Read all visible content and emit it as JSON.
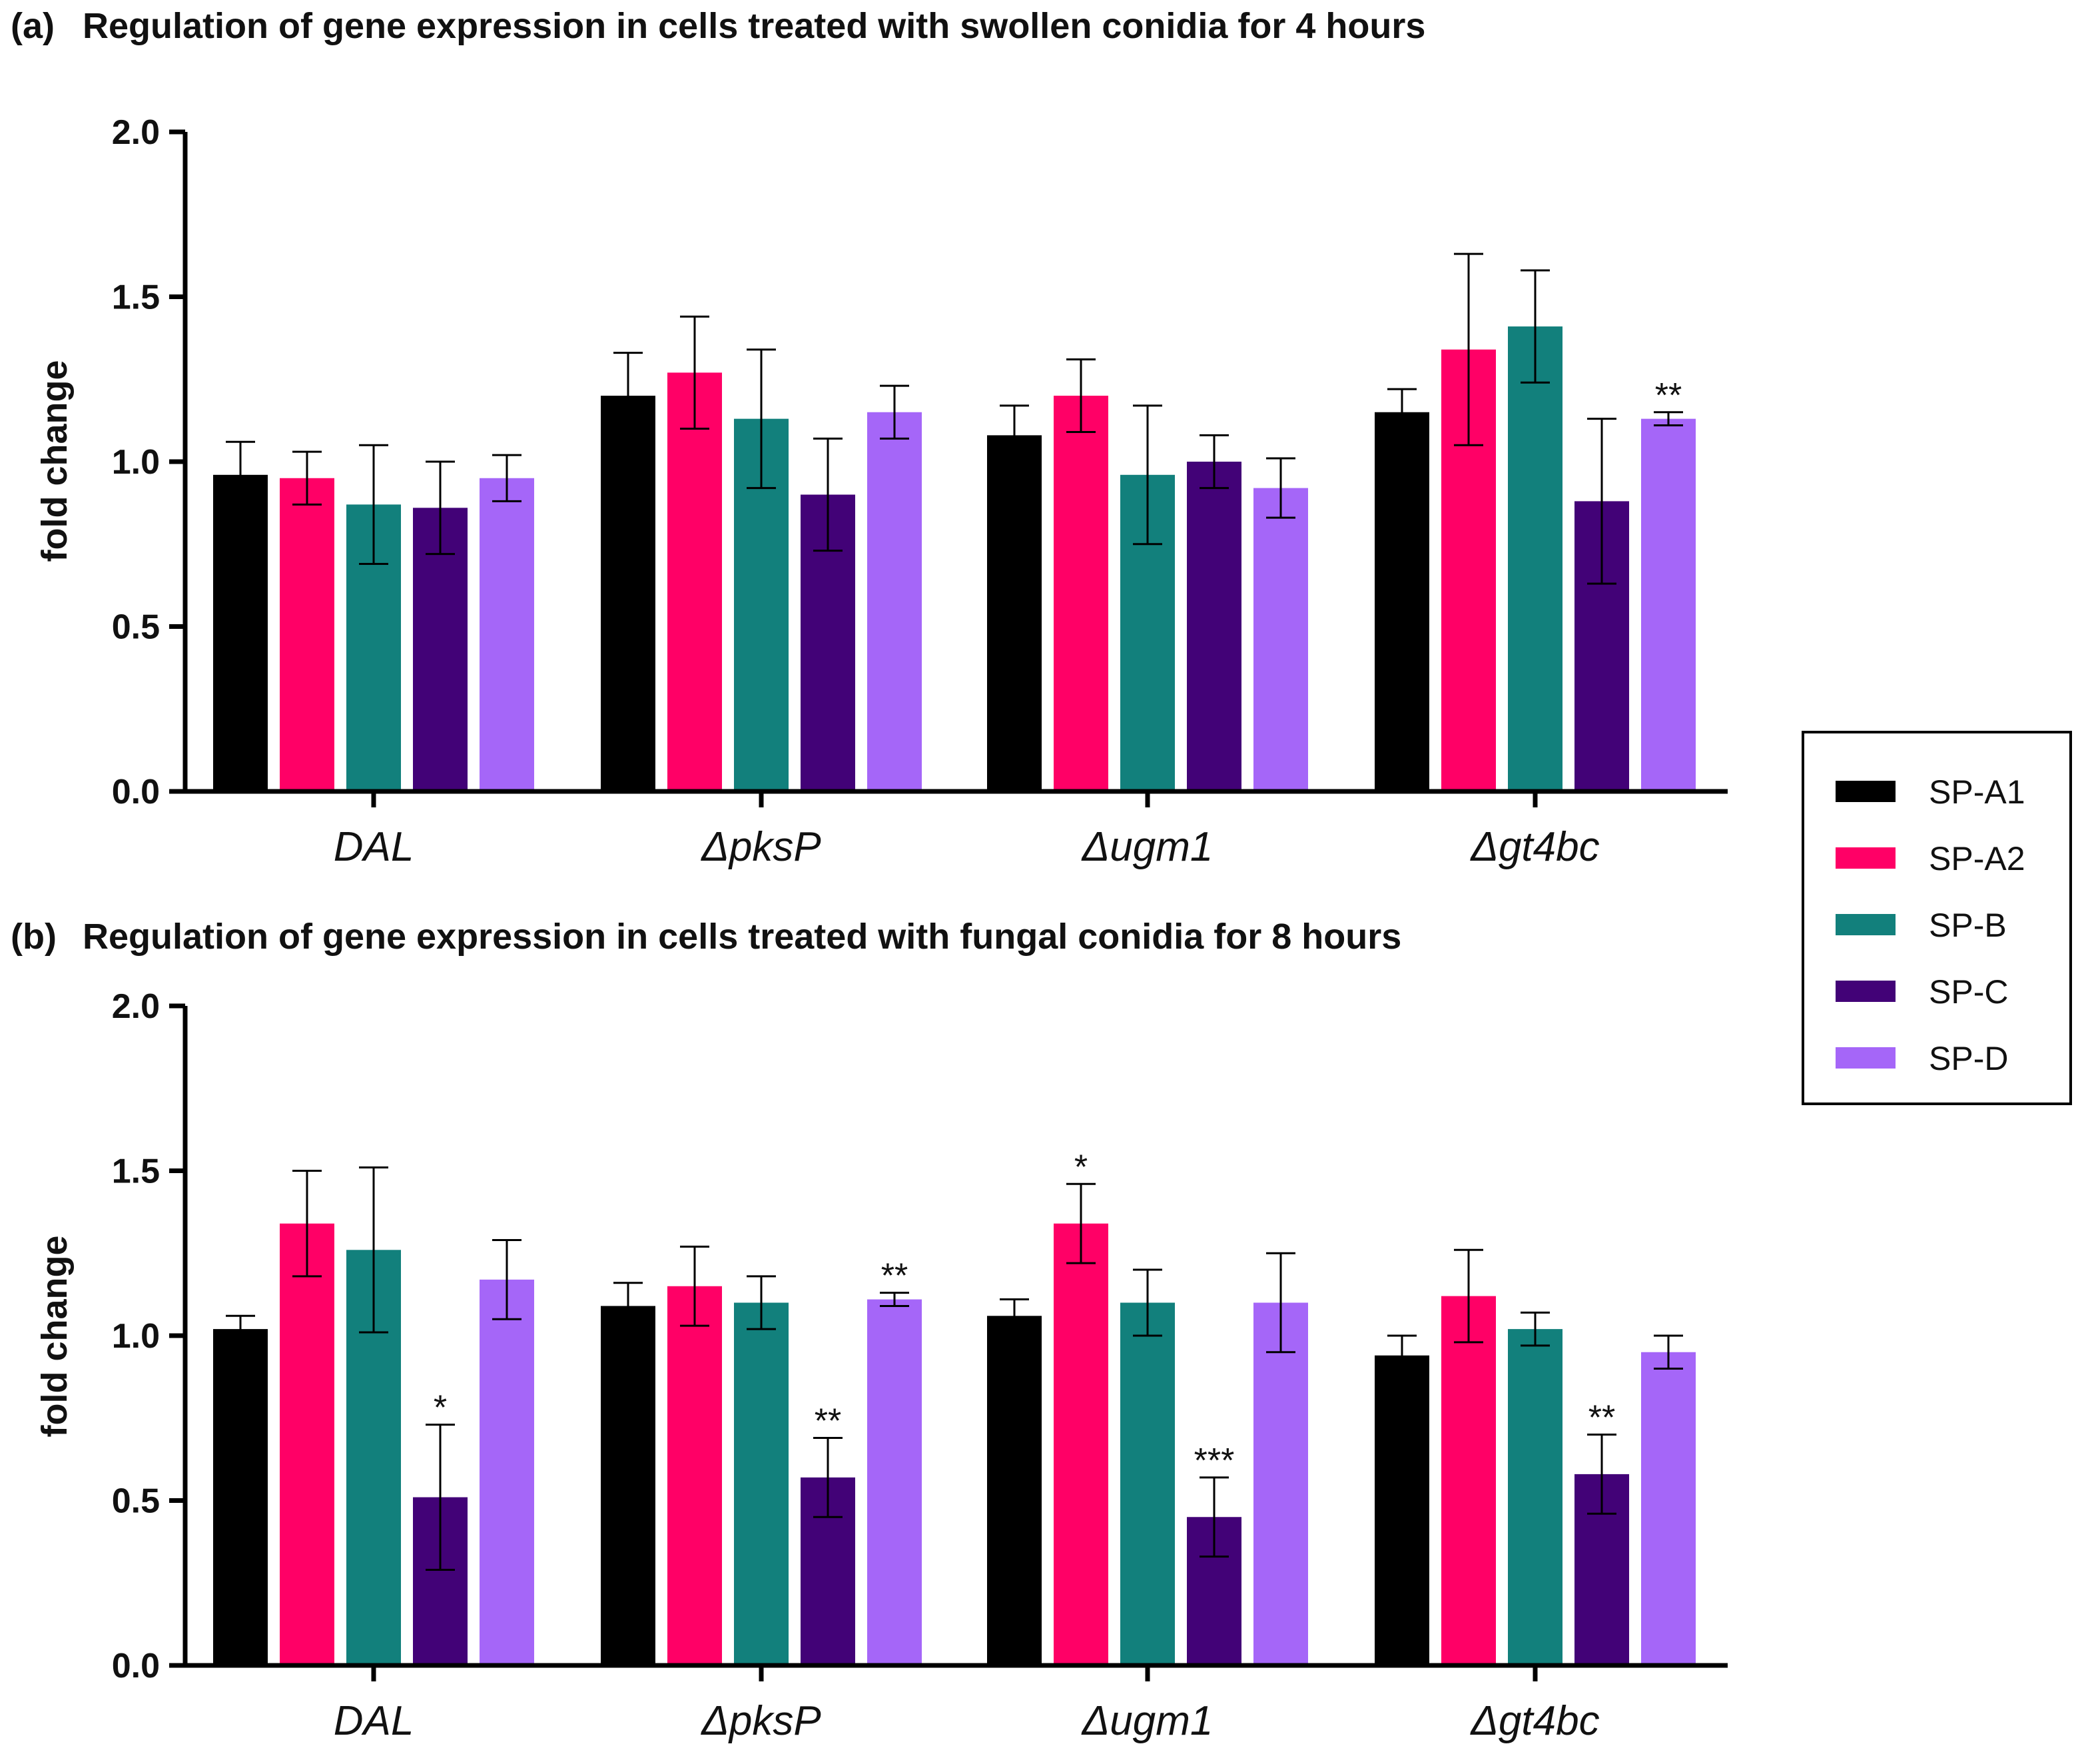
{
  "legend": {
    "entries": [
      {
        "name": "SP-A1",
        "color": "#000000"
      },
      {
        "name": "SP-A2",
        "color": "#ff0066"
      },
      {
        "name": "SP-B",
        "color": "#12807c"
      },
      {
        "name": "SP-C",
        "color": "#420277"
      },
      {
        "name": "SP-D",
        "color": "#a566f8"
      }
    ]
  },
  "chart_data": [
    {
      "type": "bar",
      "panel_label": "(a)",
      "title": "Regulation of gene expression in cells treated with swollen conidia for 4 hours",
      "xlabel": "",
      "ylabel": "fold change",
      "ylim": [
        0,
        2.0
      ],
      "yticks": [
        "0.0",
        "0.5",
        "1.0",
        "1.5",
        "2.0"
      ],
      "ytick_values": [
        0,
        0.5,
        1.0,
        1.5,
        2.0
      ],
      "categories": [
        "DAL",
        "ΔpksP",
        "Δugm1",
        "Δgt4bc"
      ],
      "series": [
        {
          "name": "SP-A1",
          "values": [
            0.96,
            1.2,
            1.08,
            1.15
          ],
          "errors": [
            0.1,
            0.13,
            0.09,
            0.07
          ],
          "sig": [
            "",
            "",
            "",
            ""
          ]
        },
        {
          "name": "SP-A2",
          "values": [
            0.95,
            1.27,
            1.2,
            1.34
          ],
          "errors": [
            0.08,
            0.17,
            0.11,
            0.29
          ],
          "sig": [
            "",
            "",
            "",
            ""
          ]
        },
        {
          "name": "SP-B",
          "values": [
            0.87,
            1.13,
            0.96,
            1.41
          ],
          "errors": [
            0.18,
            0.21,
            0.21,
            0.17
          ],
          "sig": [
            "",
            "",
            "",
            ""
          ]
        },
        {
          "name": "SP-C",
          "values": [
            0.86,
            0.9,
            1.0,
            0.88
          ],
          "errors": [
            0.14,
            0.17,
            0.08,
            0.25
          ],
          "sig": [
            "",
            "",
            "",
            ""
          ]
        },
        {
          "name": "SP-D",
          "values": [
            0.95,
            1.15,
            0.92,
            1.13
          ],
          "errors": [
            0.07,
            0.08,
            0.09,
            0.02
          ],
          "sig": [
            "",
            "",
            "",
            "**"
          ]
        }
      ]
    },
    {
      "type": "bar",
      "panel_label": "(b)",
      "title": "Regulation of gene expression in cells treated with fungal conidia for 8 hours",
      "xlabel": "",
      "ylabel": "fold change",
      "ylim": [
        0,
        2.0
      ],
      "yticks": [
        "0.0",
        "0.5",
        "1.0",
        "1.5",
        "2.0"
      ],
      "ytick_values": [
        0,
        0.5,
        1.0,
        1.5,
        2.0
      ],
      "categories": [
        "DAL",
        "ΔpksP",
        "Δugm1",
        "Δgt4bc"
      ],
      "series": [
        {
          "name": "SP-A1",
          "values": [
            1.02,
            1.09,
            1.06,
            0.94
          ],
          "errors": [
            0.04,
            0.07,
            0.05,
            0.06
          ],
          "sig": [
            "",
            "",
            "",
            ""
          ]
        },
        {
          "name": "SP-A2",
          "values": [
            1.34,
            1.15,
            1.34,
            1.12
          ],
          "errors": [
            0.16,
            0.12,
            0.12,
            0.14
          ],
          "sig": [
            "",
            "",
            "*",
            ""
          ]
        },
        {
          "name": "SP-B",
          "values": [
            1.26,
            1.1,
            1.1,
            1.02
          ],
          "errors": [
            0.25,
            0.08,
            0.1,
            0.05
          ],
          "sig": [
            "",
            "",
            "",
            ""
          ]
        },
        {
          "name": "SP-C",
          "values": [
            0.51,
            0.57,
            0.45,
            0.58
          ],
          "errors": [
            0.22,
            0.12,
            0.12,
            0.12
          ],
          "sig": [
            "*",
            "**",
            "***",
            "**"
          ]
        },
        {
          "name": "SP-D",
          "values": [
            1.17,
            1.11,
            1.1,
            0.95
          ],
          "errors": [
            0.12,
            0.02,
            0.15,
            0.05
          ],
          "sig": [
            "",
            "**",
            "",
            ""
          ]
        }
      ]
    }
  ]
}
